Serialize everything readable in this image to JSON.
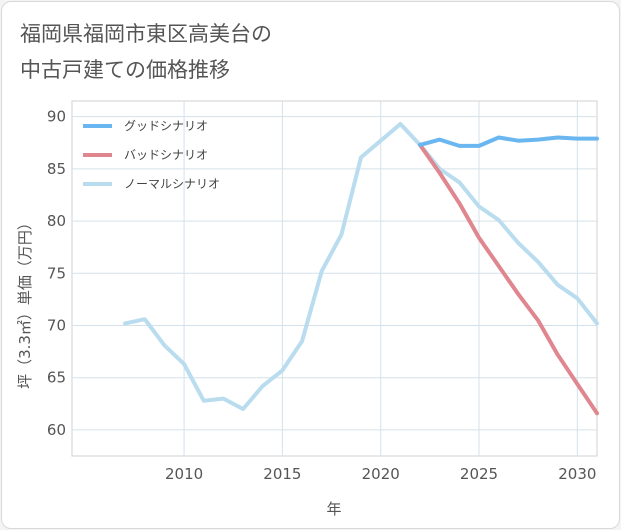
{
  "title": "福岡県福岡市東区高美台の\n中古戸建ての価格推移",
  "chart_data": {
    "type": "line",
    "title": "福岡県福岡市東区高美台の中古戸建ての価格推移",
    "xlabel": "年",
    "ylabel": "坪（3.3㎡）単価（万円）",
    "xlim": [
      2004.3,
      2031
    ],
    "ylim": [
      57.5,
      91.5
    ],
    "xticks": [
      2010,
      2015,
      2020,
      2025,
      2030
    ],
    "yticks": [
      60,
      65,
      70,
      75,
      80,
      85,
      90
    ],
    "grid": true,
    "legend_position": "top-left",
    "series": [
      {
        "name": "グッドシナリオ",
        "color": "#6ab6f0",
        "x": [
          2022,
          2023,
          2024,
          2025,
          2026,
          2027,
          2028,
          2029,
          2030,
          2031
        ],
        "y": [
          87.3,
          87.8,
          87.2,
          87.2,
          88.0,
          87.7,
          87.8,
          88.0,
          87.9,
          87.9
        ]
      },
      {
        "name": "バッドシナリオ",
        "color": "#e0868f",
        "x": [
          2022,
          2023,
          2024,
          2025,
          2026,
          2027,
          2028,
          2029,
          2030,
          2031
        ],
        "y": [
          87.3,
          84.6,
          81.7,
          78.4,
          75.7,
          73.0,
          70.5,
          67.2,
          64.4,
          61.6
        ]
      },
      {
        "name": "ノーマルシナリオ",
        "color": "#b9dcee",
        "x": [
          2007,
          2008,
          2009,
          2010,
          2011,
          2012,
          2013,
          2014,
          2015,
          2016,
          2017,
          2018,
          2019,
          2020,
          2021,
          2022,
          2023,
          2024,
          2025,
          2026,
          2027,
          2028,
          2029,
          2030,
          2031
        ],
        "y": [
          70.2,
          70.6,
          68.1,
          66.3,
          62.8,
          63.0,
          62.0,
          64.2,
          65.7,
          68.5,
          75.2,
          78.7,
          86.1,
          87.7,
          89.3,
          87.3,
          85.0,
          83.7,
          81.4,
          80.1,
          77.9,
          76.1,
          73.9,
          72.6,
          70.2
        ]
      }
    ]
  }
}
